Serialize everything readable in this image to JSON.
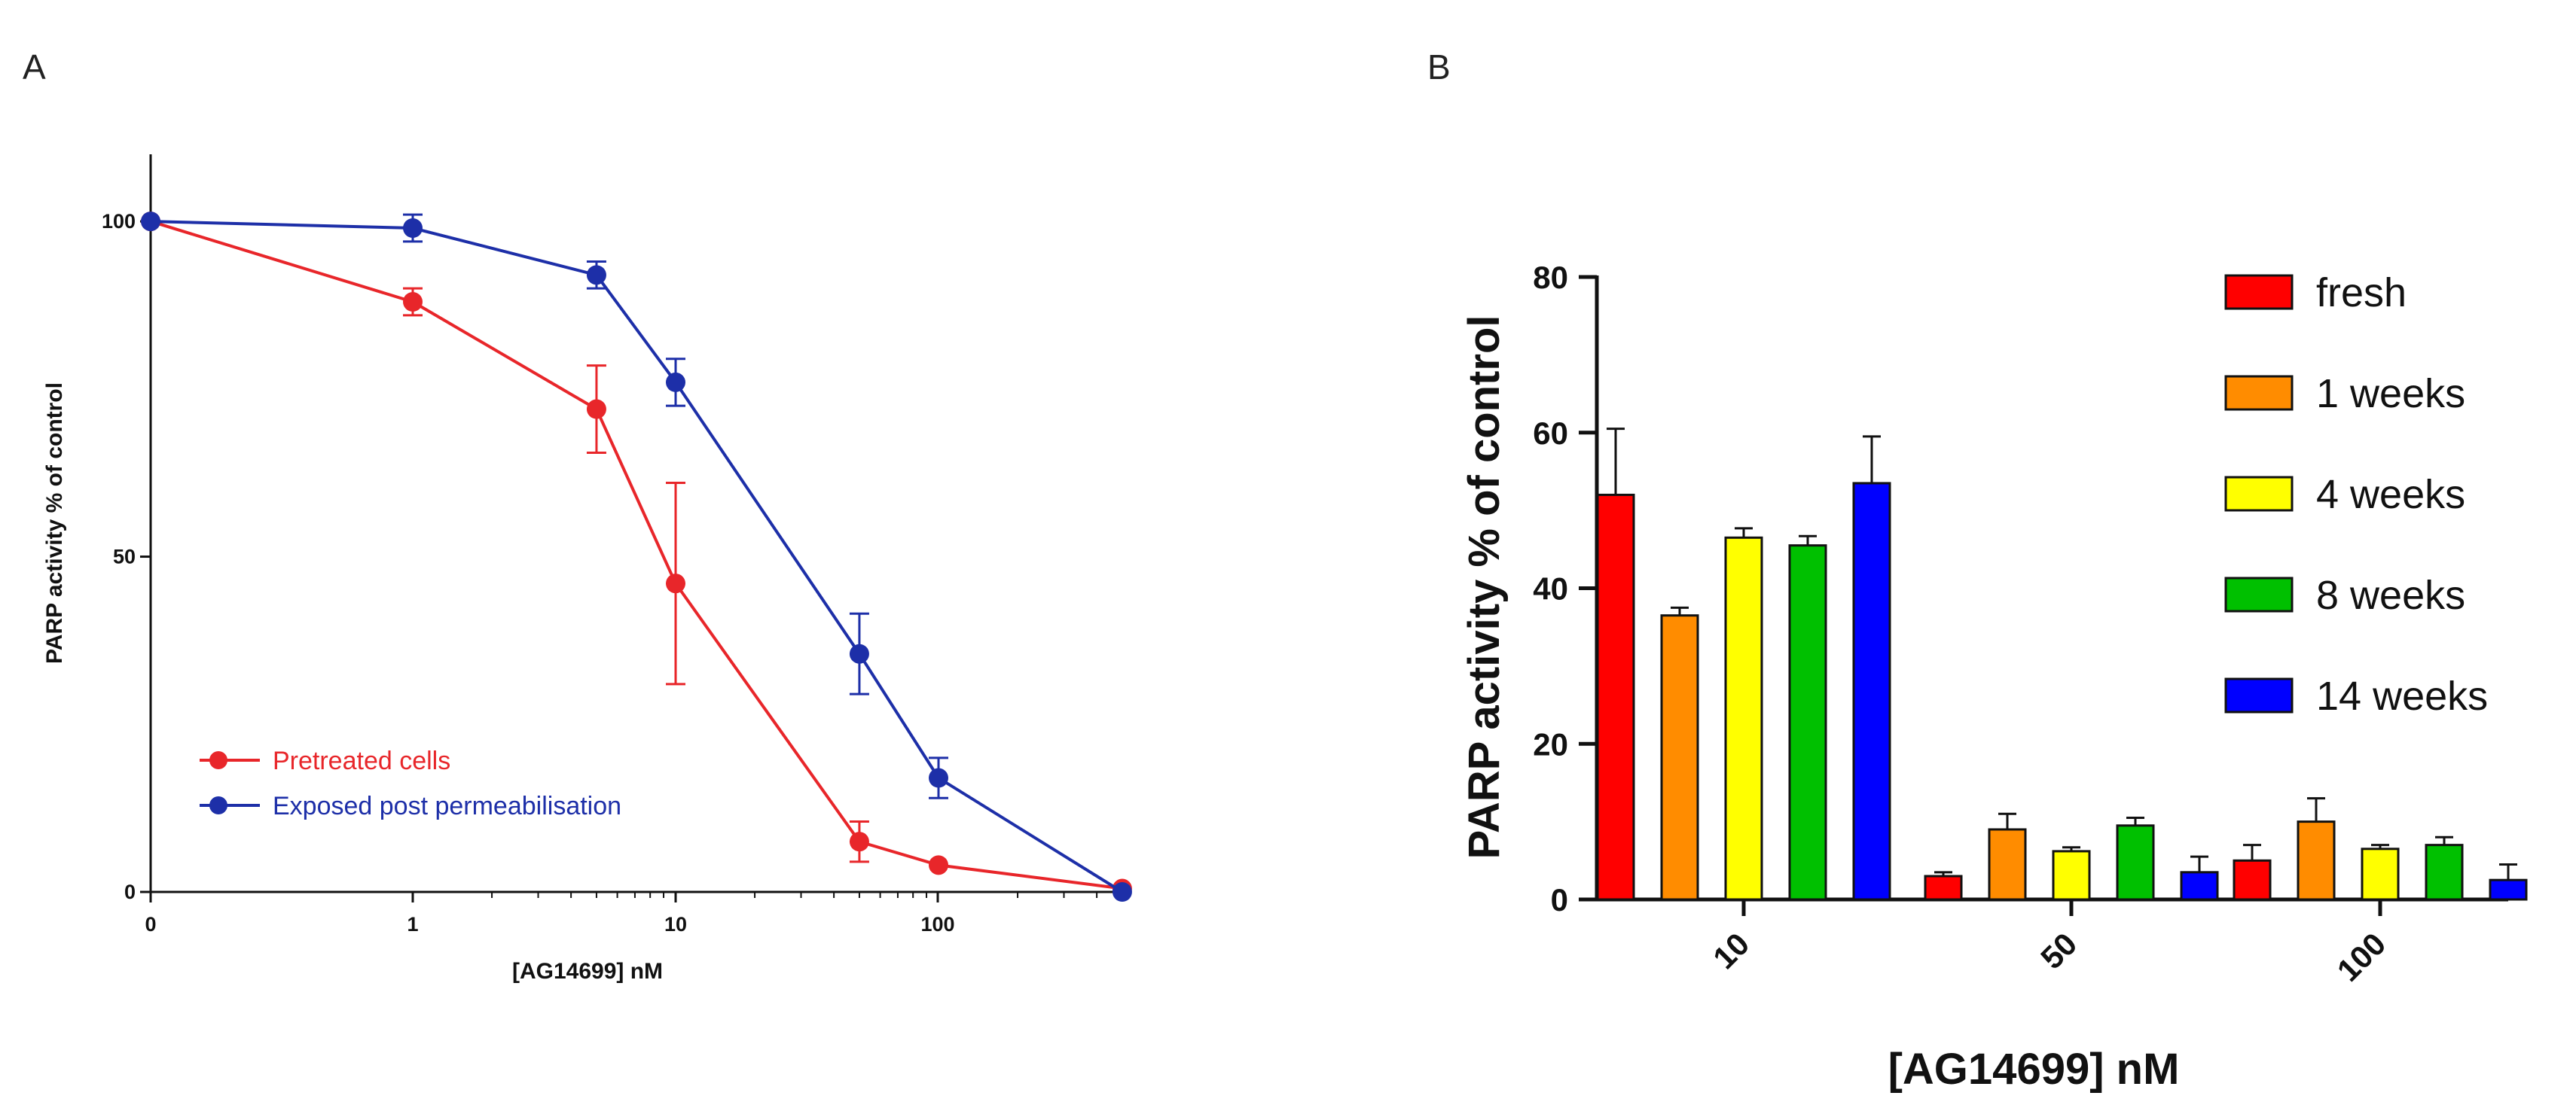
{
  "panels": {
    "a_label": "A",
    "b_label": "B"
  },
  "chart_data": [
    {
      "type": "line",
      "xscale": "log",
      "xlabel": "[AG14699] nM",
      "ylabel": "PARP activity % of control",
      "xticks": [
        {
          "value": 0,
          "label": "0"
        },
        {
          "value": 1,
          "label": "1"
        },
        {
          "value": 10,
          "label": "10"
        },
        {
          "value": 100,
          "label": "100"
        }
      ],
      "yticks": [
        0,
        50,
        100
      ],
      "ylim": [
        0,
        110
      ],
      "grid": false,
      "legend_position": "bottom-left",
      "series": [
        {
          "name": "Pretreated cells",
          "color": "#e8262a",
          "points": [
            {
              "x": 0,
              "y": 100,
              "err": 0
            },
            {
              "x": 1,
              "y": 88,
              "err": 2
            },
            {
              "x": 5,
              "y": 72,
              "err": 6.5
            },
            {
              "x": 10,
              "y": 46,
              "err": 15
            },
            {
              "x": 50,
              "y": 7.5,
              "err": 3
            },
            {
              "x": 100,
              "y": 4,
              "err": 0
            },
            {
              "x": 500,
              "y": 0.5,
              "err": 0
            }
          ]
        },
        {
          "name": "Exposed post permeabilisation",
          "color": "#1d2fa8",
          "points": [
            {
              "x": 0,
              "y": 100,
              "err": 0
            },
            {
              "x": 1,
              "y": 99,
              "err": 2
            },
            {
              "x": 5,
              "y": 92,
              "err": 2
            },
            {
              "x": 10,
              "y": 76,
              "err": 3.5
            },
            {
              "x": 50,
              "y": 35.5,
              "err": 6
            },
            {
              "x": 100,
              "y": 17,
              "err": 3
            },
            {
              "x": 500,
              "y": 0,
              "err": 0
            }
          ]
        }
      ]
    },
    {
      "type": "bar",
      "xlabel": "[AG14699] nM",
      "ylabel": "PARP activity % of control",
      "categories": [
        "10",
        "50",
        "100"
      ],
      "ylim": [
        0,
        80
      ],
      "yticks": [
        0,
        20,
        40,
        60,
        80
      ],
      "grid": false,
      "legend_position": "top-right",
      "series": [
        {
          "name": "fresh",
          "color": "#ff0000",
          "values": [
            52,
            3,
            5
          ],
          "errors": [
            8.5,
            0.5,
            2
          ]
        },
        {
          "name": "1 weeks",
          "color": "#ff8c00",
          "values": [
            36.5,
            9,
            10
          ],
          "errors": [
            1,
            2,
            3
          ]
        },
        {
          "name": "4 weeks",
          "color": "#ffff00",
          "values": [
            46.5,
            6.2,
            6.5
          ],
          "errors": [
            1.2,
            0.5,
            0.5
          ]
        },
        {
          "name": "8 weeks",
          "color": "#00c000",
          "values": [
            45.5,
            9.5,
            7
          ],
          "errors": [
            1.2,
            1,
            1
          ]
        },
        {
          "name": "14 weeks",
          "color": "#0000ff",
          "values": [
            53.5,
            3.5,
            2.5
          ],
          "errors": [
            6,
            2,
            2
          ]
        }
      ]
    }
  ]
}
